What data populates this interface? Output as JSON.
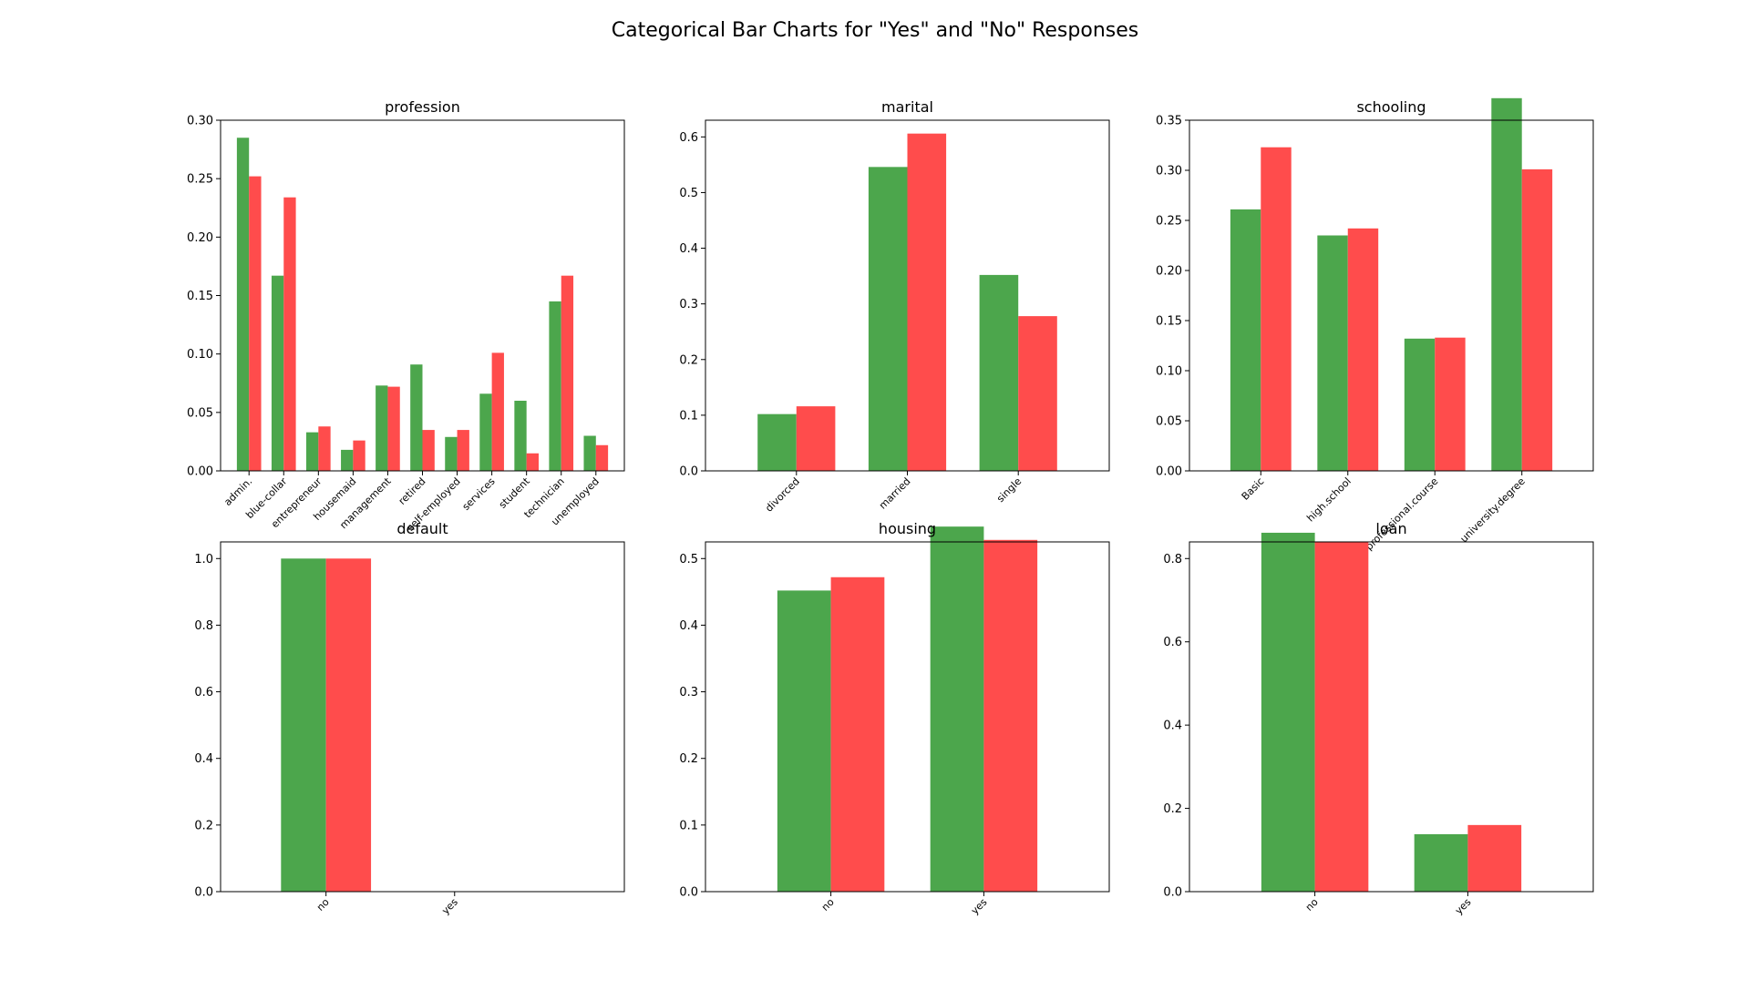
{
  "figure": {
    "title": "Categorical Bar Charts for \"Yes\" and \"No\" Responses"
  },
  "colors": {
    "series_1": "#4ca64c",
    "series_2": "#ff4c4c"
  },
  "chart_data": [
    {
      "type": "bar",
      "title": "profession",
      "categories": [
        "admin.",
        "blue-collar",
        "entrepreneur",
        "housemaid",
        "management",
        "retired",
        "self-employed",
        "services",
        "student",
        "technician",
        "unemployed"
      ],
      "series": [
        {
          "values": [
            0.285,
            0.167,
            0.033,
            0.018,
            0.073,
            0.091,
            0.029,
            0.066,
            0.06,
            0.145,
            0.03
          ]
        },
        {
          "values": [
            0.252,
            0.234,
            0.038,
            0.026,
            0.072,
            0.035,
            0.035,
            0.101,
            0.015,
            0.167,
            0.022
          ]
        }
      ],
      "ylim": [
        0,
        0.3
      ],
      "yticks": [
        "0.00",
        "0.05",
        "0.10",
        "0.15",
        "0.20",
        "0.25",
        "0.30"
      ]
    },
    {
      "type": "bar",
      "title": "marital",
      "categories": [
        "divorced",
        "married",
        "single"
      ],
      "series": [
        {
          "values": [
            0.102,
            0.546,
            0.352
          ]
        },
        {
          "values": [
            0.116,
            0.606,
            0.278
          ]
        }
      ],
      "ylim": [
        0,
        0.6
      ],
      "yticks": [
        "0.0",
        "0.1",
        "0.2",
        "0.3",
        "0.4",
        "0.5",
        "0.6"
      ]
    },
    {
      "type": "bar",
      "title": "schooling",
      "categories": [
        "Basic",
        "high.school",
        "professional.course",
        "university.degree"
      ],
      "series": [
        {
          "values": [
            0.261,
            0.235,
            0.132,
            0.372
          ]
        },
        {
          "values": [
            0.323,
            0.242,
            0.133,
            0.301
          ]
        }
      ],
      "ylim": [
        0,
        0.35
      ],
      "yticks": [
        "0.00",
        "0.05",
        "0.10",
        "0.15",
        "0.20",
        "0.25",
        "0.30",
        "0.35"
      ]
    },
    {
      "type": "bar",
      "title": "default",
      "categories": [
        "no",
        "yes"
      ],
      "series": [
        {
          "values": [
            1.0,
            0.0
          ]
        },
        {
          "values": [
            1.0,
            0.0
          ]
        }
      ],
      "ylim": [
        0,
        1.0
      ],
      "yticks": [
        "0.0",
        "0.2",
        "0.4",
        "0.6",
        "0.8",
        "1.0"
      ]
    },
    {
      "type": "bar",
      "title": "housing",
      "categories": [
        "no",
        "yes"
      ],
      "series": [
        {
          "values": [
            0.452,
            0.548
          ]
        },
        {
          "values": [
            0.472,
            0.528
          ]
        }
      ],
      "ylim": [
        0,
        0.5
      ],
      "yticks": [
        "0.0",
        "0.1",
        "0.2",
        "0.3",
        "0.4",
        "0.5"
      ]
    },
    {
      "type": "bar",
      "title": "loan",
      "categories": [
        "no",
        "yes"
      ],
      "series": [
        {
          "values": [
            0.862,
            0.138
          ]
        },
        {
          "values": [
            0.84,
            0.16
          ]
        }
      ],
      "ylim": [
        0,
        0.8
      ],
      "yticks": [
        "0.0",
        "0.2",
        "0.4",
        "0.6",
        "0.8"
      ]
    }
  ]
}
